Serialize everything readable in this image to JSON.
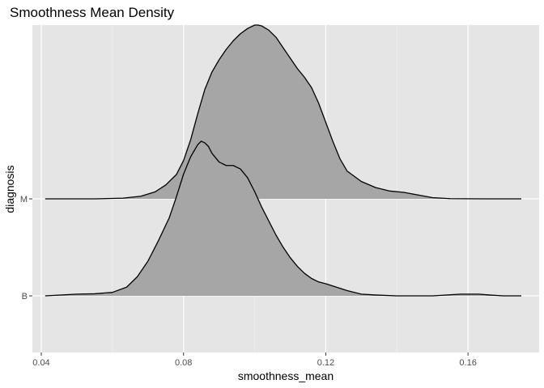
{
  "chart_data": {
    "type": "ridgeline",
    "title": "Smoothness Mean Density",
    "xlabel": "smoothness_mean",
    "ylabel": "diagnosis",
    "xlim": [
      0.0375,
      0.18
    ],
    "x_ticks": [
      0.04,
      0.08,
      0.12,
      0.16
    ],
    "x_tick_labels": [
      "0.04",
      "0.08",
      "0.12",
      "0.16"
    ],
    "categories": [
      "B",
      "M"
    ],
    "grid": true,
    "background": "#e5e5e5",
    "fill_color": "#a6a6a6",
    "line_color": "#000000",
    "series": [
      {
        "category": "M",
        "x": [
          0.0411,
          0.055,
          0.063,
          0.068,
          0.072,
          0.075,
          0.078,
          0.08,
          0.082,
          0.084,
          0.086,
          0.088,
          0.09,
          0.092,
          0.094,
          0.096,
          0.098,
          0.1,
          0.101,
          0.102,
          0.104,
          0.106,
          0.108,
          0.11,
          0.112,
          0.114,
          0.116,
          0.118,
          0.12,
          0.122,
          0.124,
          0.126,
          0.13,
          0.134,
          0.138,
          0.142,
          0.146,
          0.15,
          0.155,
          0.165,
          0.175
        ],
        "y": [
          0.0,
          0.0,
          0.004,
          0.015,
          0.04,
          0.08,
          0.14,
          0.22,
          0.34,
          0.49,
          0.63,
          0.73,
          0.8,
          0.86,
          0.91,
          0.95,
          0.98,
          1.0,
          1.0,
          0.995,
          0.97,
          0.93,
          0.87,
          0.81,
          0.75,
          0.7,
          0.64,
          0.55,
          0.44,
          0.33,
          0.23,
          0.16,
          0.1,
          0.065,
          0.045,
          0.037,
          0.022,
          0.007,
          0.001,
          0.0,
          0.0
        ]
      },
      {
        "category": "B",
        "x": [
          0.0411,
          0.05,
          0.055,
          0.06,
          0.064,
          0.067,
          0.07,
          0.073,
          0.076,
          0.078,
          0.08,
          0.082,
          0.084,
          0.085,
          0.086,
          0.087,
          0.088,
          0.09,
          0.092,
          0.094,
          0.096,
          0.098,
          0.1,
          0.102,
          0.104,
          0.106,
          0.108,
          0.11,
          0.112,
          0.114,
          0.116,
          0.118,
          0.12,
          0.123,
          0.126,
          0.13,
          0.134,
          0.14,
          0.15,
          0.158,
          0.163,
          0.166,
          0.17,
          0.175
        ],
        "y": [
          0.0,
          0.01,
          0.012,
          0.02,
          0.05,
          0.11,
          0.2,
          0.32,
          0.45,
          0.57,
          0.7,
          0.8,
          0.87,
          0.89,
          0.88,
          0.86,
          0.82,
          0.77,
          0.75,
          0.75,
          0.73,
          0.68,
          0.6,
          0.51,
          0.43,
          0.35,
          0.28,
          0.22,
          0.17,
          0.13,
          0.1,
          0.08,
          0.07,
          0.05,
          0.03,
          0.01,
          0.005,
          0.0,
          0.0,
          0.01,
          0.01,
          0.005,
          0.0,
          0.0
        ]
      }
    ]
  }
}
